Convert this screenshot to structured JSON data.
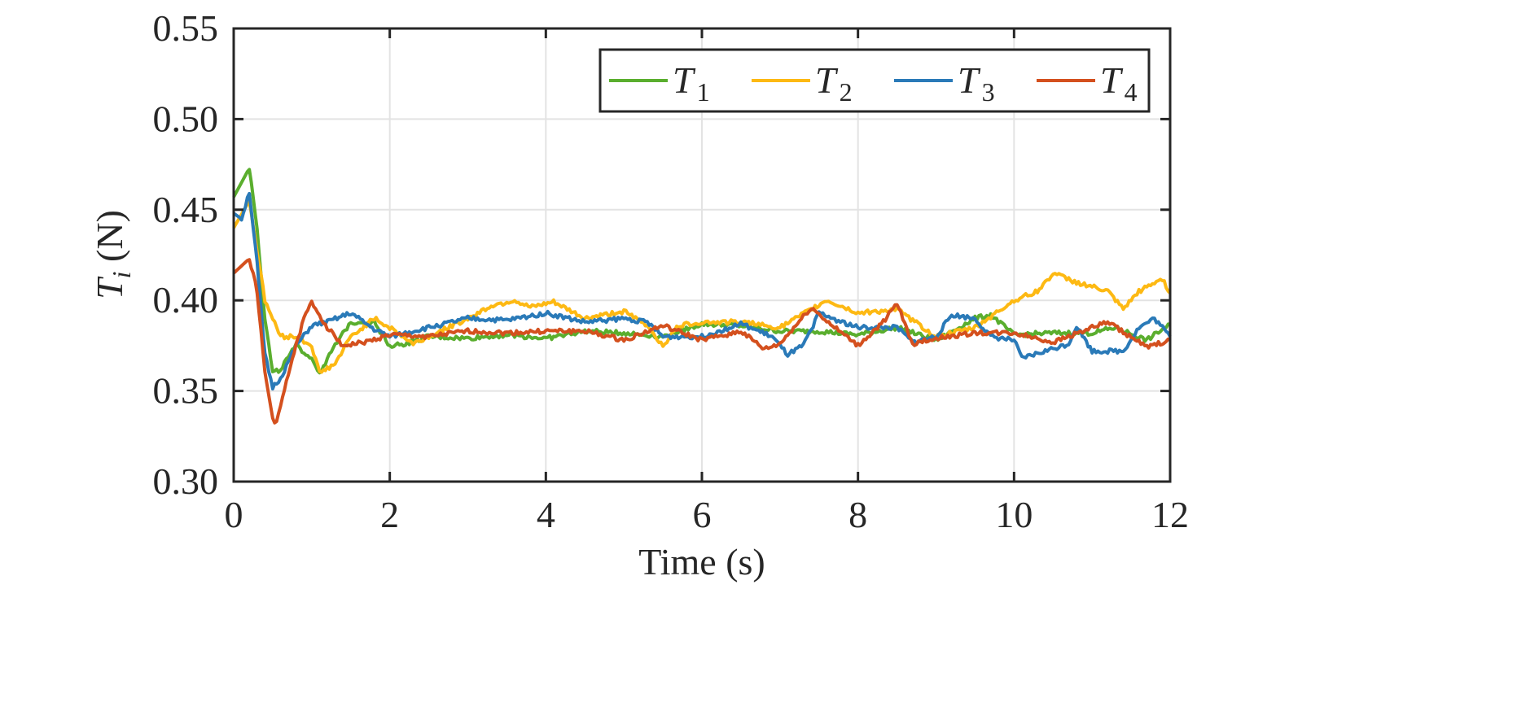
{
  "chart_data": {
    "type": "line",
    "title": "",
    "xlabel": "Time (s)",
    "ylabel": {
      "symbol": "T",
      "subscript": "i",
      "unit": " (N)"
    },
    "xlim": [
      0,
      12
    ],
    "ylim": [
      0.3,
      0.55
    ],
    "xticks": [
      0,
      2,
      4,
      6,
      8,
      10,
      12
    ],
    "xtick_labels": [
      "0",
      "2",
      "4",
      "6",
      "8",
      "10",
      "12"
    ],
    "yticks": [
      0.3,
      0.35,
      0.4,
      0.45,
      0.5,
      0.55
    ],
    "ytick_labels": [
      "0.30",
      "0.35",
      "0.40",
      "0.45",
      "0.50",
      "0.55"
    ],
    "grid": true,
    "legend_placement": "top-right",
    "series": [
      {
        "name": "T1",
        "symbol": "T",
        "subscript": "1",
        "color": "#5aae2e",
        "x": [
          0,
          0.2,
          0.3,
          0.4,
          0.5,
          0.6,
          0.8,
          1.0,
          1.1,
          1.3,
          1.5,
          1.8,
          2.0,
          2.2,
          2.5,
          3,
          3.5,
          4,
          4.5,
          5,
          5.5,
          6,
          6.5,
          7,
          7.5,
          8,
          8.5,
          9,
          9.5,
          9.7,
          10,
          10.5,
          11,
          11.3,
          11.7,
          12
        ],
        "y": [
          0.457,
          0.473,
          0.44,
          0.39,
          0.36,
          0.362,
          0.375,
          0.368,
          0.36,
          0.375,
          0.388,
          0.388,
          0.375,
          0.376,
          0.38,
          0.379,
          0.381,
          0.379,
          0.383,
          0.382,
          0.38,
          0.387,
          0.386,
          0.383,
          0.383,
          0.381,
          0.385,
          0.378,
          0.39,
          0.392,
          0.381,
          0.382,
          0.382,
          0.385,
          0.378,
          0.387
        ]
      },
      {
        "name": "T2",
        "symbol": "T",
        "subscript": "2",
        "color": "#fdb913",
        "x": [
          0,
          0.2,
          0.4,
          0.6,
          0.8,
          1.0,
          1.1,
          1.3,
          1.5,
          1.8,
          2.0,
          2.3,
          2.6,
          3,
          3.3,
          3.6,
          3.8,
          4.1,
          4.5,
          5,
          5.3,
          5.5,
          5.7,
          6,
          6.5,
          7,
          7.6,
          8,
          8.5,
          9,
          9.5,
          10,
          10.3,
          10.5,
          10.8,
          11.2,
          11.4,
          11.6,
          11.9,
          12
        ],
        "y": [
          0.44,
          0.455,
          0.4,
          0.38,
          0.38,
          0.375,
          0.36,
          0.365,
          0.38,
          0.39,
          0.385,
          0.376,
          0.382,
          0.39,
          0.397,
          0.4,
          0.396,
          0.399,
          0.39,
          0.394,
          0.386,
          0.375,
          0.386,
          0.388,
          0.388,
          0.385,
          0.4,
          0.393,
          0.395,
          0.38,
          0.385,
          0.4,
          0.405,
          0.415,
          0.41,
          0.405,
          0.395,
          0.405,
          0.412,
          0.404
        ]
      },
      {
        "name": "T3",
        "symbol": "T",
        "subscript": "3",
        "color": "#2a7ab8",
        "x": [
          0,
          0.1,
          0.2,
          0.3,
          0.4,
          0.5,
          0.6,
          0.8,
          1.0,
          1.2,
          1.5,
          1.8,
          2,
          2.5,
          3,
          3.5,
          4,
          4.5,
          5,
          5.3,
          5.5,
          6,
          6.5,
          6.9,
          7.1,
          7.3,
          7.5,
          7.8,
          8,
          8.5,
          8.7,
          9,
          9.2,
          9.5,
          9.7,
          10,
          10.1,
          10.4,
          10.7,
          10.8,
          11,
          11.4,
          11.6,
          11.8,
          12
        ],
        "y": [
          0.448,
          0.445,
          0.46,
          0.42,
          0.37,
          0.352,
          0.357,
          0.375,
          0.386,
          0.388,
          0.393,
          0.384,
          0.38,
          0.385,
          0.39,
          0.389,
          0.393,
          0.388,
          0.39,
          0.388,
          0.38,
          0.38,
          0.387,
          0.38,
          0.37,
          0.375,
          0.393,
          0.388,
          0.385,
          0.385,
          0.377,
          0.38,
          0.392,
          0.39,
          0.38,
          0.378,
          0.368,
          0.372,
          0.376,
          0.386,
          0.372,
          0.372,
          0.385,
          0.39,
          0.38
        ]
      },
      {
        "name": "T4",
        "symbol": "T",
        "subscript": "4",
        "color": "#d4501e",
        "x": [
          0,
          0.2,
          0.3,
          0.4,
          0.5,
          0.55,
          0.7,
          0.9,
          1.0,
          1.2,
          1.4,
          1.7,
          2.0,
          2.5,
          3,
          3.5,
          4,
          4.5,
          5,
          5.5,
          6,
          6.5,
          6.8,
          7,
          7.4,
          7.7,
          8,
          8.3,
          8.5,
          8.7,
          9,
          9.5,
          10,
          10.5,
          11,
          11.2,
          11.7,
          12
        ],
        "y": [
          0.415,
          0.423,
          0.405,
          0.36,
          0.335,
          0.332,
          0.36,
          0.39,
          0.399,
          0.385,
          0.375,
          0.377,
          0.381,
          0.38,
          0.383,
          0.382,
          0.383,
          0.383,
          0.378,
          0.386,
          0.378,
          0.383,
          0.373,
          0.376,
          0.396,
          0.385,
          0.375,
          0.387,
          0.398,
          0.376,
          0.379,
          0.382,
          0.382,
          0.377,
          0.385,
          0.388,
          0.374,
          0.378
        ]
      }
    ]
  }
}
